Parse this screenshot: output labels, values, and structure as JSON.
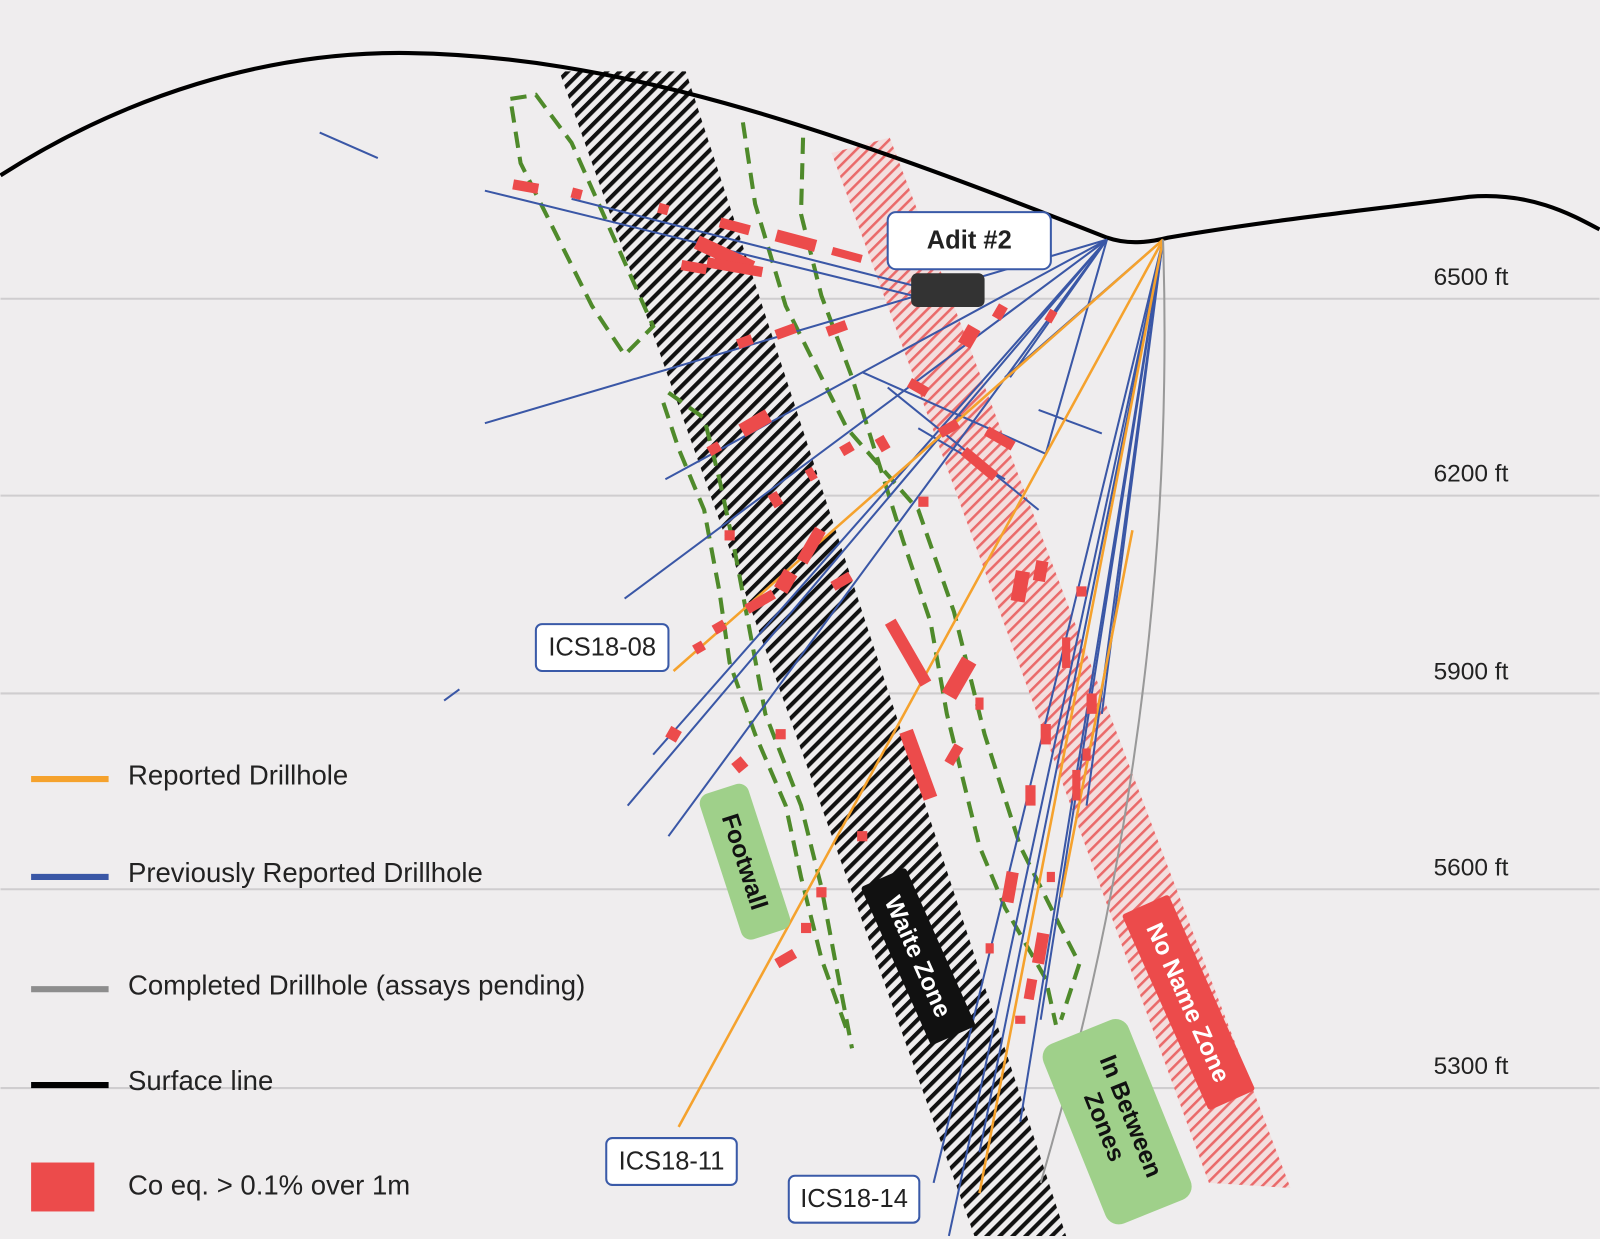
{
  "elevations": [
    "6500 ft",
    "6200 ft",
    "5900 ft",
    "5600 ft",
    "5300 ft"
  ],
  "adit": "Adit #2",
  "drillhole_labels": [
    "ICS18-08",
    "ICS18-11",
    "ICS18-14"
  ],
  "zones": {
    "footwall": "Footwall",
    "waite": "Waite Zone",
    "no_name": "No Name Zone",
    "in_between": [
      "In Between",
      "Zones"
    ]
  },
  "legend": [
    "Reported Drillhole",
    "Previously Reported Drillhole",
    "Completed Drillhole (assays pending)",
    "Surface line",
    "Co eq.  > 0.1% over 1m"
  ]
}
